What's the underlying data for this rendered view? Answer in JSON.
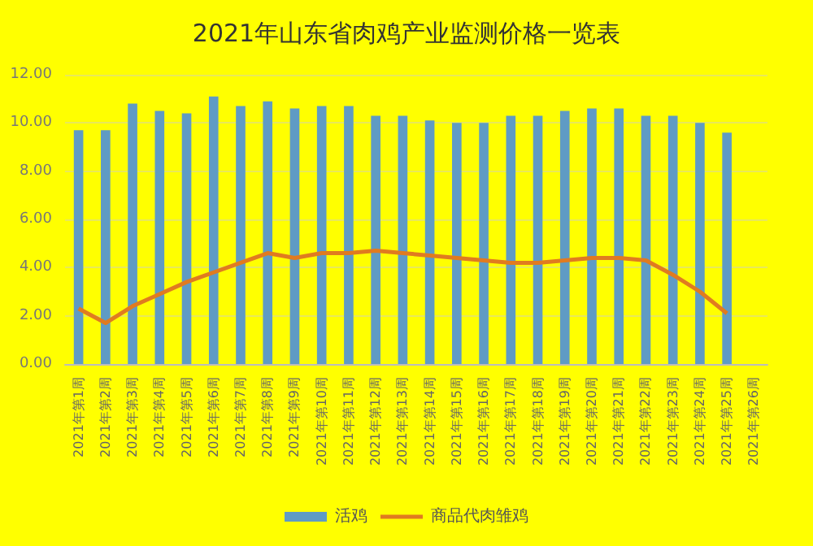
{
  "chart_data": {
    "type": "bar",
    "title": "2021年山东省肉鸡产业监测价格一览表",
    "categories": [
      "2021年第1周",
      "2021年第2周",
      "2021年第3周",
      "2021年第4周",
      "2021年第5周",
      "2021年第6周",
      "2021年第7周",
      "2021年第8周",
      "2021年第9周",
      "2021年第10周",
      "2021年第11周",
      "2021年第12周",
      "2021年第13周",
      "2021年第14周",
      "2021年第15周",
      "2021年第16周",
      "2021年第17周",
      "2021年第18周",
      "2021年第19周",
      "2021年第20周",
      "2021年第21周",
      "2021年第22周",
      "2021年第23周",
      "2021年第24周",
      "2021年第25周",
      "2021年第26周"
    ],
    "series": [
      {
        "name": "活鸡",
        "color": "#5f9bc4",
        "values": [
          9.7,
          9.7,
          10.8,
          10.5,
          10.4,
          11.1,
          10.7,
          10.9,
          10.6,
          10.7,
          10.7,
          10.3,
          10.3,
          10.1,
          10.0,
          10.0,
          10.3,
          10.3,
          10.5,
          10.6,
          10.6,
          10.3,
          10.3,
          10.0,
          9.6,
          null
        ]
      },
      {
        "name": "商品代肉雏鸡",
        "type": "line",
        "color": "#e07b20",
        "values": [
          2.3,
          1.7,
          2.4,
          2.9,
          3.4,
          3.8,
          4.2,
          4.6,
          4.4,
          4.6,
          4.6,
          4.7,
          4.6,
          4.5,
          4.4,
          4.3,
          4.2,
          4.2,
          4.3,
          4.4,
          4.4,
          4.3,
          3.7,
          3.0,
          2.1,
          null
        ]
      }
    ],
    "ylim": [
      0,
      12
    ],
    "yticks": [
      {
        "value": 0,
        "label": "0.00"
      },
      {
        "value": 2,
        "label": "2.00"
      },
      {
        "value": 4,
        "label": "4.00"
      },
      {
        "value": 6,
        "label": "6.00"
      },
      {
        "value": 8,
        "label": "8.00"
      },
      {
        "value": 10,
        "label": "10.00"
      },
      {
        "value": 12,
        "label": "12.00"
      }
    ],
    "grid": "y",
    "legend": "bottom",
    "marker": "none"
  }
}
